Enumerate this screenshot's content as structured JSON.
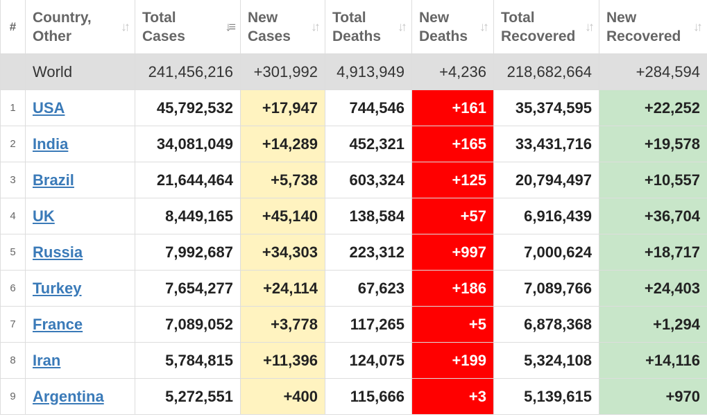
{
  "colors": {
    "new_cases_bg": "#fff3c0",
    "new_deaths_bg": "#ff0000",
    "new_recovered_bg": "#c8e6c9",
    "link": "#3a7ab8",
    "world_row_bg": "#dfdfdf"
  },
  "headers": {
    "rank": "#",
    "country": "Country, Other",
    "total_cases": "Total Cases",
    "new_cases": "New Cases",
    "total_deaths": "Total Deaths",
    "new_deaths": "New Deaths",
    "total_recovered": "Total Recovered",
    "new_recovered": "New Recovered"
  },
  "sort": {
    "active_column": "total_cases",
    "direction": "descending"
  },
  "world": {
    "name": "World",
    "total_cases": "241,456,216",
    "new_cases": "+301,992",
    "total_deaths": "4,913,949",
    "new_deaths": "+4,236",
    "total_recovered": "218,682,664",
    "new_recovered": "+284,594"
  },
  "rows": [
    {
      "rank": "1",
      "country": "USA",
      "total_cases": "45,792,532",
      "new_cases": "+17,947",
      "total_deaths": "744,546",
      "new_deaths": "+161",
      "total_recovered": "35,374,595",
      "new_recovered": "+22,252"
    },
    {
      "rank": "2",
      "country": "India",
      "total_cases": "34,081,049",
      "new_cases": "+14,289",
      "total_deaths": "452,321",
      "new_deaths": "+165",
      "total_recovered": "33,431,716",
      "new_recovered": "+19,578"
    },
    {
      "rank": "3",
      "country": "Brazil",
      "total_cases": "21,644,464",
      "new_cases": "+5,738",
      "total_deaths": "603,324",
      "new_deaths": "+125",
      "total_recovered": "20,794,497",
      "new_recovered": "+10,557"
    },
    {
      "rank": "4",
      "country": "UK",
      "total_cases": "8,449,165",
      "new_cases": "+45,140",
      "total_deaths": "138,584",
      "new_deaths": "+57",
      "total_recovered": "6,916,439",
      "new_recovered": "+36,704"
    },
    {
      "rank": "5",
      "country": "Russia",
      "total_cases": "7,992,687",
      "new_cases": "+34,303",
      "total_deaths": "223,312",
      "new_deaths": "+997",
      "total_recovered": "7,000,624",
      "new_recovered": "+18,717"
    },
    {
      "rank": "6",
      "country": "Turkey",
      "total_cases": "7,654,277",
      "new_cases": "+24,114",
      "total_deaths": "67,623",
      "new_deaths": "+186",
      "total_recovered": "7,089,766",
      "new_recovered": "+24,403"
    },
    {
      "rank": "7",
      "country": "France",
      "total_cases": "7,089,052",
      "new_cases": "+3,778",
      "total_deaths": "117,265",
      "new_deaths": "+5",
      "total_recovered": "6,878,368",
      "new_recovered": "+1,294"
    },
    {
      "rank": "8",
      "country": "Iran",
      "total_cases": "5,784,815",
      "new_cases": "+11,396",
      "total_deaths": "124,075",
      "new_deaths": "+199",
      "total_recovered": "5,324,108",
      "new_recovered": "+14,116"
    },
    {
      "rank": "9",
      "country": "Argentina",
      "total_cases": "5,272,551",
      "new_cases": "+400",
      "total_deaths": "115,666",
      "new_deaths": "+3",
      "total_recovered": "5,139,615",
      "new_recovered": "+970"
    }
  ]
}
